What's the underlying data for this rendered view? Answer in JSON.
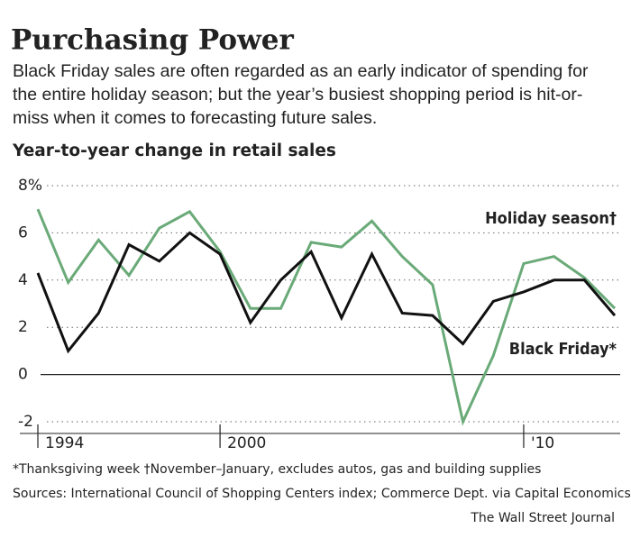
{
  "chart_data": {
    "type": "line",
    "title": "Purchasing Power",
    "subtitle": "Black Friday sales are often regarded as an early indicator of spending for the entire holiday season; but the year’s busiest shopping period is hit-or-miss when it comes to forecasting future sales.",
    "y_axis_label": "Year-to-year change in retail sales",
    "x": [
      1994,
      1995,
      1996,
      1997,
      1998,
      1999,
      2000,
      2001,
      2002,
      2003,
      2004,
      2005,
      2006,
      2007,
      2008,
      2009,
      2010,
      2011,
      2012,
      2013
    ],
    "series": [
      {
        "name": "Holiday season†",
        "color": "#6aaa78",
        "values": [
          7.0,
          3.9,
          5.7,
          4.2,
          6.2,
          6.9,
          5.2,
          2.8,
          2.8,
          5.6,
          5.4,
          6.5,
          5.0,
          3.8,
          -2.0,
          0.8,
          4.7,
          5.0,
          4.1,
          2.8
        ]
      },
      {
        "name": "Black Friday*",
        "color": "#111111",
        "values": [
          4.3,
          1.0,
          2.6,
          5.5,
          4.8,
          6.0,
          5.1,
          2.2,
          4.0,
          5.2,
          2.4,
          5.1,
          2.6,
          2.5,
          1.3,
          3.1,
          3.5,
          4.0,
          4.0,
          2.5
        ]
      }
    ],
    "xlim": [
      1994,
      2013
    ],
    "xticks": [
      1994,
      2000,
      {
        "value": 2010,
        "label": "'10"
      }
    ],
    "ylim": [
      -2,
      8
    ],
    "yticks": [
      {
        "value": 8,
        "label": "8%"
      },
      6,
      4,
      2,
      0,
      -2
    ],
    "grid": true,
    "footnote": "*Thanksgiving week  †November–January, excludes autos, gas and building supplies",
    "source": "Sources: International Council of Shopping Centers index; Commerce Dept. via Capital Economics",
    "credit": "The Wall Street Journal"
  }
}
